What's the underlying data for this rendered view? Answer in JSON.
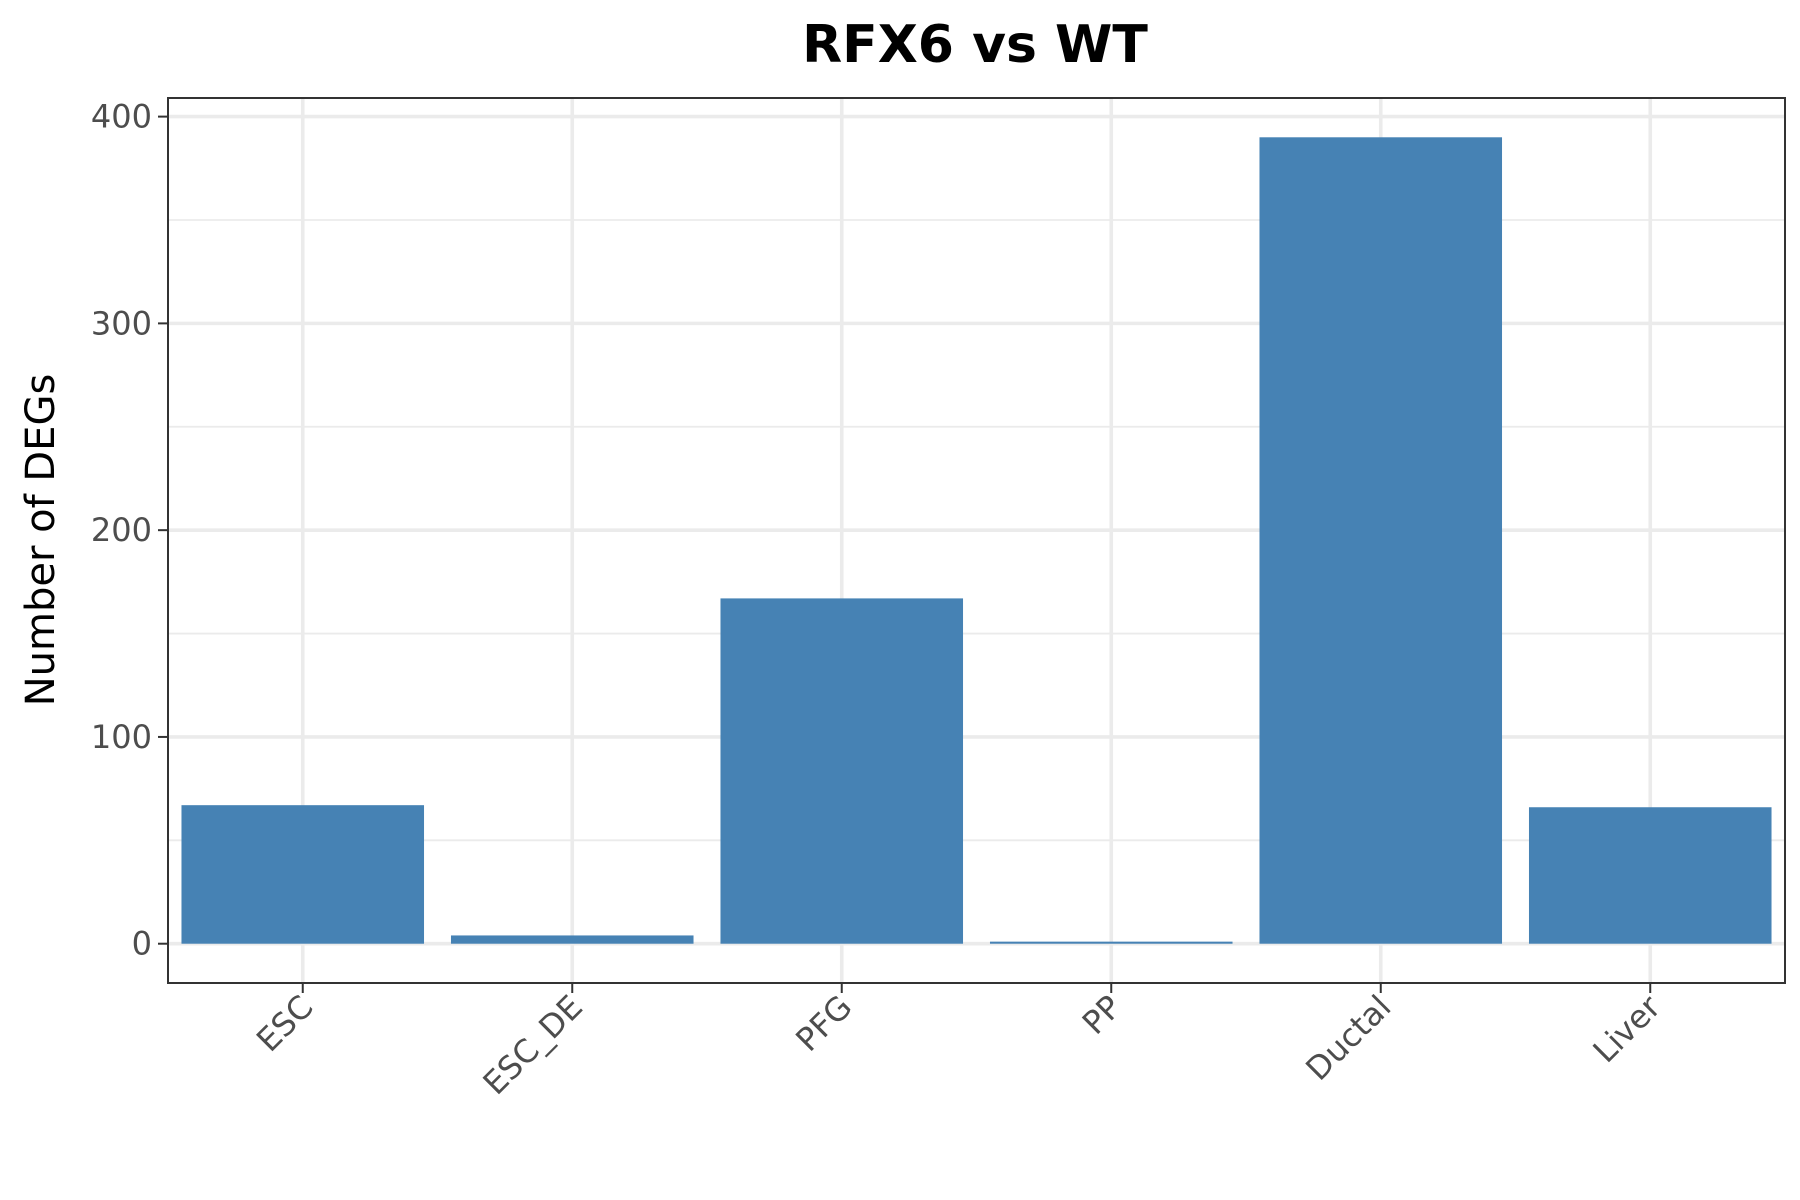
{
  "chart_data": {
    "type": "bar",
    "title": "RFX6 vs WT",
    "xlabel": "",
    "ylabel": "Number of DEGs",
    "categories": [
      "ESC",
      "ESC_DE",
      "PFG",
      "PP",
      "Ductal",
      "Liver"
    ],
    "values": [
      67,
      4,
      167,
      1,
      390,
      66
    ],
    "ylim": [
      -19,
      409
    ],
    "yticks": [
      0,
      100,
      200,
      300,
      400
    ],
    "ytick_labels": [
      "0",
      "100",
      "200",
      "300",
      "400"
    ],
    "grid": true,
    "legend": "none",
    "bar_color": "#4682b4"
  }
}
